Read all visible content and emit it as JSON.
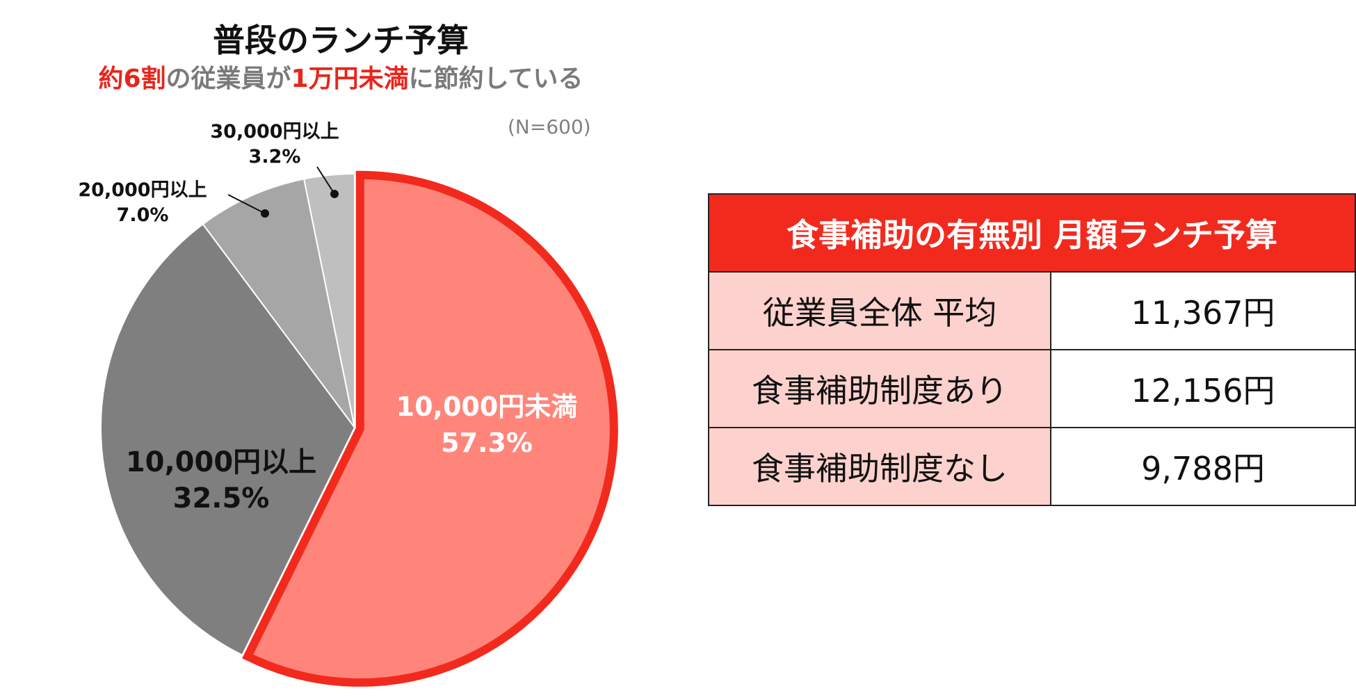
{
  "chart_data": {
    "type": "pie",
    "title": "普段のランチ予算",
    "subtitle_parts": [
      "約6割",
      "の従業員が",
      "1万円未満",
      "に節約している"
    ],
    "sample_size": "(N=600)",
    "slices": [
      {
        "label": "10,000円未満",
        "value": 57.3,
        "value_label": "57.3%",
        "color": "#ff857a",
        "highlight": true
      },
      {
        "label": "10,000円以上",
        "value": 32.5,
        "value_label": "32.5%",
        "color": "#7f7f7f"
      },
      {
        "label": "20,000円以上",
        "value": 7.0,
        "value_label": "7.0%",
        "color": "#a6a6a6"
      },
      {
        "label": "30,000円以上",
        "value": 3.2,
        "value_label": "3.2%",
        "color": "#bfbfbf"
      }
    ],
    "highlight_color": "#f22a1e"
  },
  "table": {
    "title": "食事補助の有無別 月額ランチ予算",
    "rows": [
      {
        "label": "従業員全体 平均",
        "value": "11,367円"
      },
      {
        "label": "食事補助制度あり",
        "value": "12,156円"
      },
      {
        "label": "食事補助制度なし",
        "value": "9,788円"
      }
    ]
  }
}
